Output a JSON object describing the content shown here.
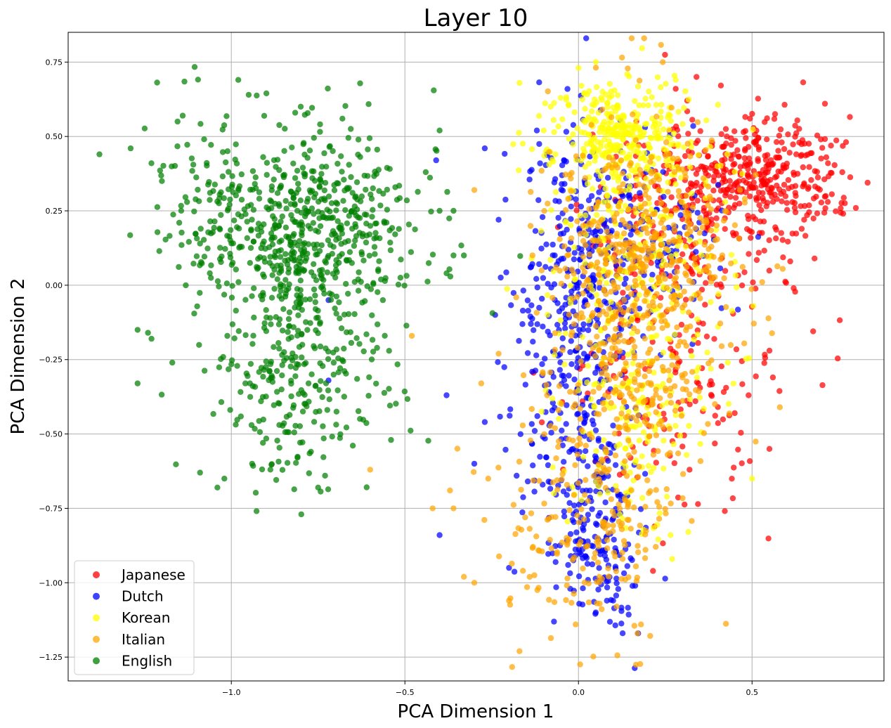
{
  "chart_data": {
    "type": "scatter",
    "title": "Layer 10",
    "xlabel": "PCA Dimension 1",
    "ylabel": "PCA Dimension 2",
    "xlim": [
      -1.47,
      0.88
    ],
    "ylim": [
      -1.33,
      0.85
    ],
    "xticks": [
      -1.0,
      -0.5,
      0.0,
      0.5
    ],
    "xtick_labels": [
      "−1.0",
      "−0.5",
      "0.0",
      "0.5"
    ],
    "yticks": [
      0.75,
      0.5,
      0.25,
      0.0,
      -0.25,
      -0.5,
      -0.75,
      -1.0,
      -1.25
    ],
    "ytick_labels": [
      "0.75",
      "0.50",
      "0.25",
      "0.00",
      "−0.25",
      "−0.50",
      "−0.75",
      "−1.00",
      "−1.25"
    ],
    "grid": true,
    "legend_position": "lower-left",
    "series": [
      {
        "name": "Japanese",
        "color": "#ff0000",
        "clusters": [
          {
            "n": 360,
            "cx": 0.52,
            "cy": 0.36,
            "sx": 0.12,
            "sy": 0.1
          },
          {
            "n": 200,
            "cx": 0.3,
            "cy": 0.18,
            "sx": 0.14,
            "sy": 0.18
          },
          {
            "n": 140,
            "cx": 0.25,
            "cy": -0.32,
            "sx": 0.16,
            "sy": 0.22
          }
        ],
        "outliers": [
          [
            0.71,
            0.61
          ],
          [
            0.76,
            0.38
          ],
          [
            0.55,
            -0.55
          ],
          [
            0.56,
            -0.31
          ],
          [
            0.49,
            -0.37
          ],
          [
            0.45,
            -0.43
          ],
          [
            0.61,
            0.08
          ],
          [
            0.68,
            0.09
          ],
          [
            0.65,
            0.22
          ],
          [
            0.55,
            -0.22
          ],
          [
            0.62,
            -0.01
          ],
          [
            0.34,
            0.7
          ],
          [
            0.28,
            0.66
          ],
          [
            0.15,
            -0.58
          ],
          [
            0.32,
            -0.62
          ]
        ]
      },
      {
        "name": "Dutch",
        "color": "#0000ff",
        "clusters": [
          {
            "n": 380,
            "cx": 0.0,
            "cy": -0.2,
            "sx": 0.08,
            "sy": 0.38
          },
          {
            "n": 200,
            "cx": 0.12,
            "cy": 0.15,
            "sx": 0.14,
            "sy": 0.18
          },
          {
            "n": 140,
            "cx": 0.05,
            "cy": -0.85,
            "sx": 0.06,
            "sy": 0.15
          }
        ],
        "outliers": [
          [
            -0.4,
            -0.84
          ],
          [
            -0.38,
            -0.37
          ],
          [
            -0.72,
            -0.32
          ],
          [
            -0.41,
            0.42
          ],
          [
            -0.72,
            -0.05
          ],
          [
            -0.3,
            -0.6
          ],
          [
            -0.2,
            -0.95
          ],
          [
            -0.27,
            0.46
          ],
          [
            -0.12,
            0.52
          ],
          [
            0.05,
            -1.1
          ],
          [
            0.1,
            -1.06
          ],
          [
            -0.24,
            -0.1
          ],
          [
            -0.27,
            -0.46
          ],
          [
            -0.23,
            0.22
          ]
        ]
      },
      {
        "name": "Korean",
        "color": "#ffff00",
        "clusters": [
          {
            "n": 320,
            "cx": 0.12,
            "cy": 0.5,
            "sx": 0.1,
            "sy": 0.1
          },
          {
            "n": 220,
            "cx": 0.18,
            "cy": 0.12,
            "sx": 0.13,
            "sy": 0.22
          },
          {
            "n": 160,
            "cx": 0.15,
            "cy": -0.45,
            "sx": 0.1,
            "sy": 0.2
          }
        ],
        "outliers": [
          [
            -0.08,
            0.6
          ],
          [
            0.05,
            0.75
          ],
          [
            0.0,
            0.73
          ],
          [
            -0.17,
            0.68
          ],
          [
            0.28,
            0.69
          ],
          [
            0.5,
            -0.65
          ],
          [
            0.27,
            -0.92
          ],
          [
            0.4,
            0.4
          ],
          [
            -0.1,
            0.52
          ],
          [
            0.43,
            -0.26
          ]
        ]
      },
      {
        "name": "Italian",
        "color": "#ffa500",
        "clusters": [
          {
            "n": 520,
            "cx": 0.15,
            "cy": -0.1,
            "sx": 0.13,
            "sy": 0.32
          },
          {
            "n": 180,
            "cx": 0.02,
            "cy": -0.8,
            "sx": 0.12,
            "sy": 0.18
          },
          {
            "n": 150,
            "cx": 0.25,
            "cy": 0.12,
            "sx": 0.12,
            "sy": 0.15
          }
        ],
        "outliers": [
          [
            -0.6,
            -0.62
          ],
          [
            -0.23,
            -0.23
          ],
          [
            -0.48,
            -0.17
          ],
          [
            -0.42,
            -0.75
          ],
          [
            -0.36,
            -0.75
          ],
          [
            -0.33,
            -0.98
          ],
          [
            -0.3,
            -1.0
          ],
          [
            -0.17,
            -1.23
          ],
          [
            -0.2,
            -1.06
          ],
          [
            -0.26,
            -0.65
          ],
          [
            0.58,
            -0.41
          ],
          [
            -0.3,
            0.32
          ],
          [
            -0.28,
            -0.33
          ],
          [
            -0.16,
            -0.96
          ],
          [
            0.17,
            -1.17
          ],
          [
            0.18,
            -1.14
          ],
          [
            -0.37,
            -0.69
          ]
        ]
      },
      {
        "name": "English",
        "color": "#008000",
        "clusters": [
          {
            "n": 520,
            "cx": -0.76,
            "cy": 0.2,
            "sx": 0.15,
            "sy": 0.16
          },
          {
            "n": 300,
            "cx": -0.8,
            "cy": -0.28,
            "sx": 0.13,
            "sy": 0.2
          },
          {
            "n": 100,
            "cx": -1.05,
            "cy": 0.3,
            "sx": 0.1,
            "sy": 0.18
          }
        ],
        "outliers": [
          [
            -1.38,
            0.44
          ],
          [
            -1.29,
            0.46
          ],
          [
            -1.27,
            -0.33
          ],
          [
            -1.27,
            -0.15
          ],
          [
            -1.24,
            -0.16
          ],
          [
            -1.23,
            -0.18
          ],
          [
            -1.17,
            -0.26
          ],
          [
            -1.2,
            0.35
          ],
          [
            -1.14,
            0.57
          ],
          [
            -0.33,
            0.1
          ],
          [
            -0.36,
            0.1
          ],
          [
            -0.38,
            0.04
          ],
          [
            -0.4,
            0.25
          ],
          [
            -0.44,
            0.38
          ],
          [
            -0.4,
            0.52
          ],
          [
            -0.36,
            0.25
          ],
          [
            -1.02,
            -0.65
          ],
          [
            -1.04,
            -0.68
          ],
          [
            -0.94,
            -0.6
          ],
          [
            -0.75,
            -0.68
          ],
          [
            -0.73,
            -0.64
          ],
          [
            -0.54,
            -0.52
          ],
          [
            -1.09,
            -0.63
          ],
          [
            -0.98,
            0.69
          ],
          [
            -0.95,
            0.64
          ],
          [
            -0.8,
            0.6
          ],
          [
            -1.15,
            0.21
          ],
          [
            -0.68,
            0.56
          ],
          [
            -1.09,
            0.14
          ]
        ]
      }
    ]
  }
}
